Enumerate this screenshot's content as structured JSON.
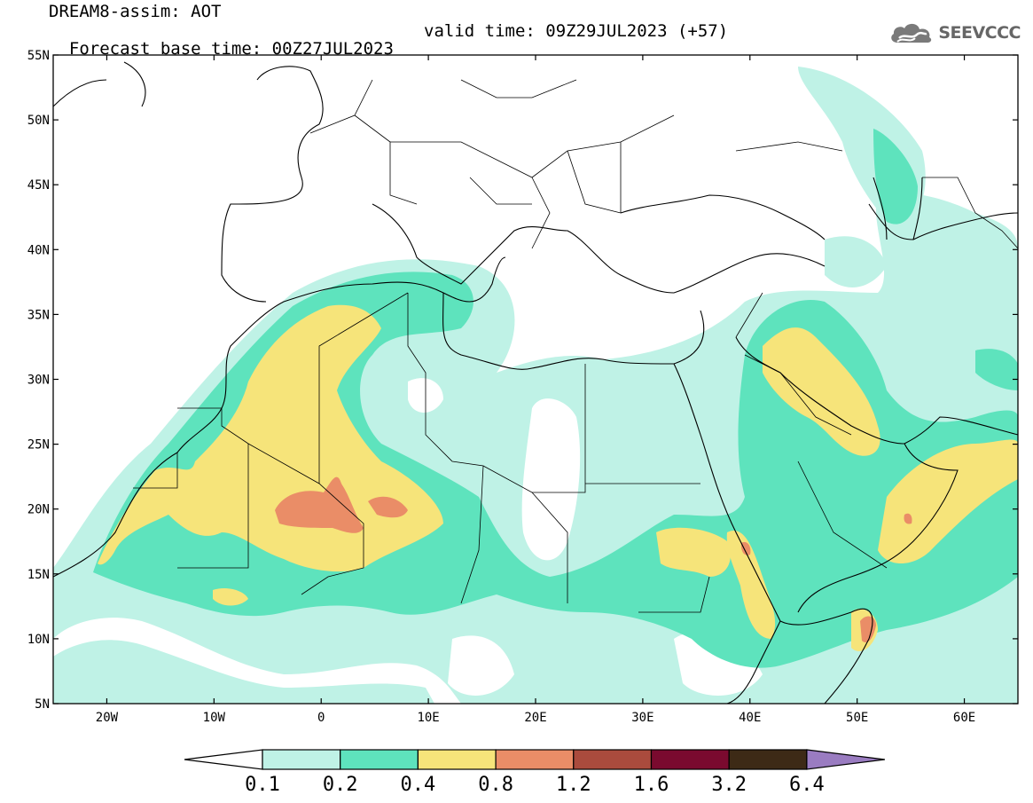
{
  "header": {
    "line1": "DREAM8-assim: AOT",
    "line2_base": "Forecast base time: 00Z27JUL2023",
    "line2_valid": "valid time: 09Z29JUL2023 (+57)"
  },
  "logo": {
    "icon": "cloud-icon",
    "text": "SEEVCCC"
  },
  "map": {
    "lat_range": [
      5,
      55
    ],
    "lon_range": [
      -25,
      65
    ],
    "lat_ticks": [
      {
        "value": 55,
        "label": "55N"
      },
      {
        "value": 50,
        "label": "50N"
      },
      {
        "value": 45,
        "label": "45N"
      },
      {
        "value": 40,
        "label": "40N"
      },
      {
        "value": 35,
        "label": "35N"
      },
      {
        "value": 30,
        "label": "30N"
      },
      {
        "value": 25,
        "label": "25N"
      },
      {
        "value": 20,
        "label": "20N"
      },
      {
        "value": 15,
        "label": "15N"
      },
      {
        "value": 10,
        "label": "10N"
      },
      {
        "value": 5,
        "label": "5N"
      }
    ],
    "lon_ticks": [
      {
        "value": -20,
        "label": "20W"
      },
      {
        "value": -10,
        "label": "10W"
      },
      {
        "value": 0,
        "label": "0"
      },
      {
        "value": 10,
        "label": "10E"
      },
      {
        "value": 20,
        "label": "20E"
      },
      {
        "value": 30,
        "label": "30E"
      },
      {
        "value": 40,
        "label": "40E"
      },
      {
        "value": 50,
        "label": "50E"
      },
      {
        "value": 60,
        "label": "60E"
      }
    ]
  },
  "colorbar": {
    "levels": [
      "0.1",
      "0.2",
      "0.4",
      "0.8",
      "1.2",
      "1.6",
      "3.2",
      "6.4"
    ],
    "colors": [
      "#ffffff",
      "#bff2e6",
      "#5ee3bd",
      "#f6e47a",
      "#ea8d67",
      "#aa4b3d",
      "#7a0a2f",
      "#3d2a16",
      "#9a7cc1"
    ]
  }
}
